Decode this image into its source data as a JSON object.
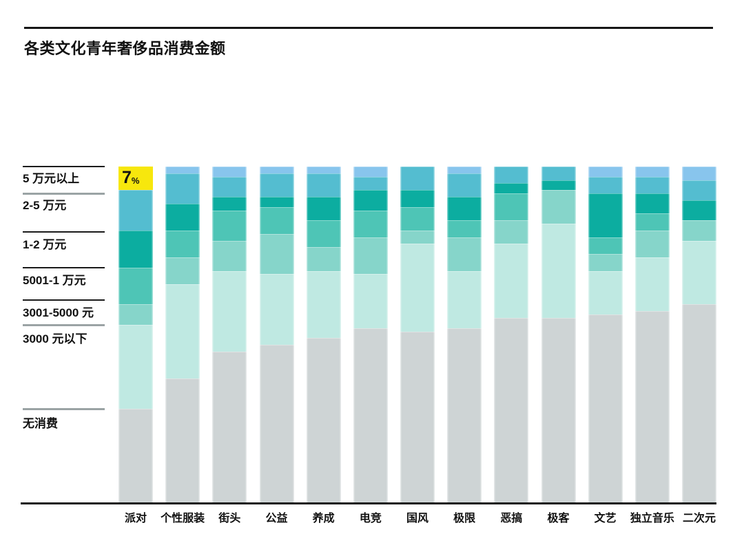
{
  "header": {
    "title": "各类文化青年奢侈品消费金额"
  },
  "colors": {
    "accent_highlight": "#f7e70d",
    "over_50k": "#88c5ed",
    "k20_50": "#54bdd0",
    "k10_20": "#0cada0",
    "k5_10": "#4ec5b6",
    "k3_5": "#86d5ca",
    "under_3k": "#bfe9e2",
    "none": "#ced4d5",
    "axis": "#161616",
    "legend_line_gray": "#9aa3a4"
  },
  "chart_data": {
    "type": "bar",
    "subtype": "stacked-percent-column",
    "title": "各类文化青年奢侈品消费金额",
    "ylim": [
      0,
      100
    ],
    "grid": false,
    "legend_position": "left",
    "categories": [
      "派对",
      "个性服装",
      "街头",
      "公益",
      "养成",
      "电竞",
      "国风",
      "极限",
      "恶搞",
      "极客",
      "文艺",
      "独立音乐",
      "二次元"
    ],
    "series": [
      {
        "name": "5 万元以上",
        "color": "#88c5ed",
        "values": [
          7,
          2,
          3,
          2,
          2,
          3,
          0,
          2,
          0,
          0,
          3,
          3,
          4
        ]
      },
      {
        "name": "2-5 万元",
        "color": "#54bdd0",
        "values": [
          12,
          9,
          6,
          7,
          7,
          4,
          7,
          7,
          5,
          4,
          5,
          5,
          6
        ]
      },
      {
        "name": "1-2 万元",
        "color": "#0cada0",
        "values": [
          11,
          8,
          4,
          3,
          7,
          6,
          5,
          7,
          3,
          3,
          13,
          6,
          6
        ]
      },
      {
        "name": "5001-1 万元",
        "color": "#4ec5b6",
        "values": [
          11,
          8,
          9,
          8,
          8,
          8,
          7,
          5,
          8,
          0,
          5,
          5,
          0
        ]
      },
      {
        "name": "3001-5000 元",
        "color": "#86d5ca",
        "values": [
          6,
          8,
          9,
          12,
          7,
          11,
          4,
          10,
          7,
          10,
          5,
          8,
          6
        ]
      },
      {
        "name": "3000 元以下",
        "color": "#bfe9e2",
        "values": [
          25,
          28,
          24,
          21,
          20,
          16,
          26,
          17,
          22,
          28,
          13,
          16,
          19
        ]
      },
      {
        "name": "无消费",
        "color": "#ced4d5",
        "values": [
          28,
          37,
          45,
          47,
          49,
          52,
          51,
          52,
          55,
          55,
          56,
          57,
          59
        ]
      }
    ],
    "highlight": {
      "category": "派对",
      "series": "5 万元以上",
      "value": 7,
      "label": "7",
      "unit": "%",
      "color": "#f7e70d"
    }
  }
}
